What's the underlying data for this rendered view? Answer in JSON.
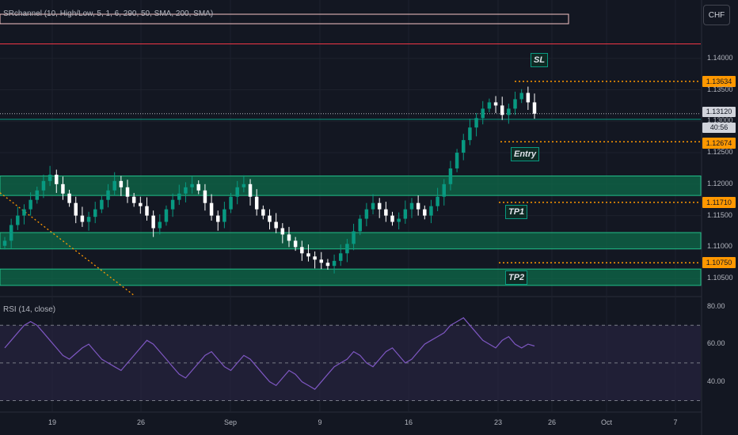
{
  "header": {
    "indicator_label": "SRchannel (10, High/Low, 5, 1, 6, 290, 50, SMA, 200, SMA)",
    "currency_button": "CHF",
    "rsi_label": "RSI (14, close)"
  },
  "price_tags": {
    "sl": "1.13634",
    "current": "1.13120",
    "countdown": "40:56",
    "entry": "1.12674",
    "tp1": "1.11710",
    "tp2": "1.10750"
  },
  "annotations": {
    "sl": "SL",
    "entry": "Entry",
    "tp1": "TP1",
    "tp2": "TP2"
  },
  "colors": {
    "background": "#131722",
    "up_candle": "#089981",
    "down_candle": "#ffffff",
    "zone_fill": "#0d6b4a",
    "zone_border": "#22c08a",
    "level_dotted": "#ff9800",
    "rsi_line": "#7e57c2",
    "rsi_band": "#2a2445"
  },
  "chart_data": [
    {
      "type": "candlestick",
      "title": "",
      "y_axis_ticks": [
        "1.14000",
        "1.13500",
        "1.13000",
        "1.12500",
        "1.12000",
        "1.11500",
        "1.11000",
        "1.10500"
      ],
      "x_axis_ticks": [
        "19",
        "26",
        "Sep",
        "9",
        "16",
        "23",
        "26",
        "Oct",
        "7"
      ],
      "ylim": [
        1.1025,
        1.1455
      ],
      "support_resistance_zones": [
        {
          "low": 1.1182,
          "high": 1.1213
        },
        {
          "low": 1.1097,
          "high": 1.1123
        },
        {
          "low": 1.1039,
          "high": 1.1065
        }
      ],
      "horizontal_lines": [
        {
          "value": 1.1423,
          "style": "solid",
          "color": "#f23645"
        },
        {
          "value": 1.1303,
          "style": "solid",
          "color": "#089981"
        },
        {
          "value": 1.1312,
          "style": "dotted",
          "color": "#b2b5be"
        }
      ],
      "trade_levels": [
        {
          "name": "SL",
          "value": 1.13634
        },
        {
          "name": "Entry",
          "value": 1.12674
        },
        {
          "name": "TP1",
          "value": 1.1171
        },
        {
          "name": "TP2",
          "value": 1.1075
        }
      ],
      "trendline": {
        "from": {
          "x": "Aug 14",
          "y": 1.118
        },
        "to": {
          "x": "Aug 29",
          "y": 1.1025
        }
      },
      "close_series": [
        1.111,
        1.1135,
        1.115,
        1.116,
        1.1175,
        1.119,
        1.1205,
        1.1215,
        1.12,
        1.1185,
        1.117,
        1.115,
        1.114,
        1.1148,
        1.116,
        1.1175,
        1.119,
        1.1205,
        1.1195,
        1.118,
        1.117,
        1.1165,
        1.115,
        1.113,
        1.114,
        1.116,
        1.1175,
        1.1185,
        1.1195,
        1.12,
        1.119,
        1.117,
        1.115,
        1.114,
        1.116,
        1.118,
        1.1195,
        1.12,
        1.118,
        1.116,
        1.115,
        1.114,
        1.113,
        1.112,
        1.111,
        1.11,
        1.109,
        1.1085,
        1.108,
        1.1075,
        1.107,
        1.1078,
        1.109,
        1.1105,
        1.1125,
        1.1145,
        1.116,
        1.117,
        1.116,
        1.115,
        1.114,
        1.1145,
        1.116,
        1.117,
        1.116,
        1.115,
        1.1165,
        1.118,
        1.12,
        1.1225,
        1.125,
        1.127,
        1.129,
        1.1305,
        1.132,
        1.133,
        1.1325,
        1.131,
        1.132,
        1.1335,
        1.1345,
        1.133,
        1.1312
      ]
    },
    {
      "type": "line",
      "title": "RSI (14, close)",
      "y_axis_ticks": [
        "80.00",
        "60.00",
        "40.00"
      ],
      "ylim": [
        26,
        84
      ],
      "band": {
        "upper": 70,
        "middle": 50,
        "lower": 30
      },
      "values": [
        58,
        62,
        66,
        70,
        72,
        70,
        66,
        62,
        58,
        54,
        52,
        55,
        58,
        60,
        56,
        52,
        50,
        48,
        46,
        50,
        54,
        58,
        62,
        60,
        56,
        52,
        48,
        44,
        42,
        46,
        50,
        54,
        56,
        52,
        48,
        46,
        50,
        54,
        52,
        48,
        44,
        40,
        38,
        42,
        46,
        44,
        40,
        38,
        36,
        40,
        44,
        48,
        50,
        52,
        56,
        54,
        50,
        48,
        52,
        56,
        58,
        54,
        50,
        52,
        56,
        60,
        62,
        64,
        66,
        70,
        72,
        74,
        70,
        66,
        62,
        60,
        58,
        62,
        64,
        60,
        58,
        60,
        59
      ]
    }
  ]
}
